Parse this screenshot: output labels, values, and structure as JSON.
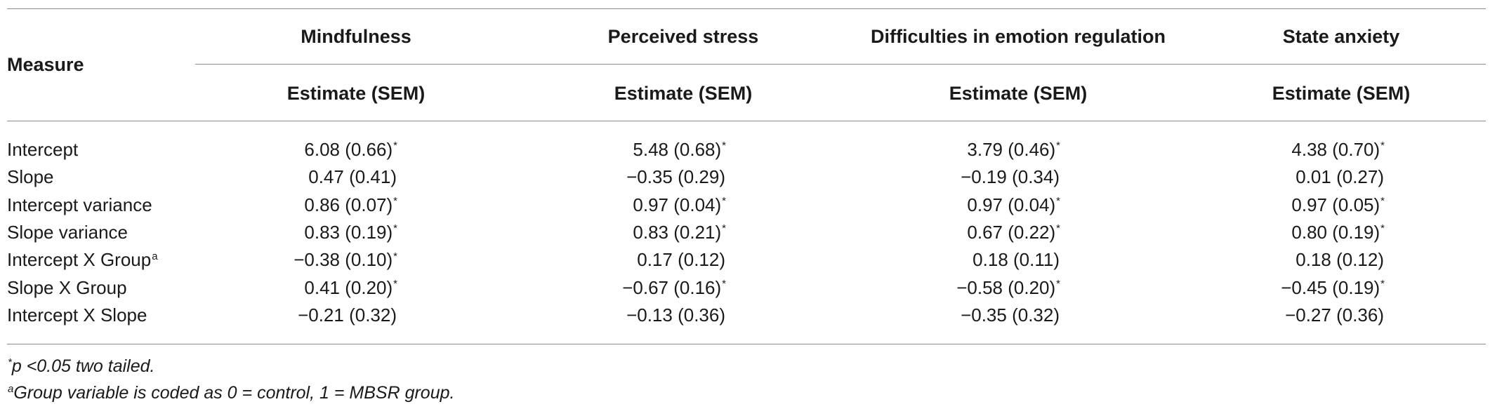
{
  "table": {
    "row_header": "Measure",
    "column_groups": [
      {
        "name": "Mindfulness",
        "sub": "Estimate (SEM)"
      },
      {
        "name": "Perceived stress",
        "sub": "Estimate (SEM)"
      },
      {
        "name": "Difficulties in emotion regulation",
        "sub": "Estimate (SEM)"
      },
      {
        "name": "State anxiety",
        "sub": "Estimate (SEM)"
      }
    ],
    "rows": [
      {
        "label": "Intercept",
        "label_sup": "",
        "cells": [
          {
            "value": "6.08 (0.66)",
            "sig": "*"
          },
          {
            "value": "5.48 (0.68)",
            "sig": "*"
          },
          {
            "value": "3.79 (0.46)",
            "sig": "*"
          },
          {
            "value": "4.38 (0.70)",
            "sig": "*"
          }
        ]
      },
      {
        "label": "Slope",
        "label_sup": "",
        "cells": [
          {
            "value": "0.47 (0.41)",
            "sig": ""
          },
          {
            "value": "−0.35 (0.29)",
            "sig": ""
          },
          {
            "value": "−0.19 (0.34)",
            "sig": ""
          },
          {
            "value": "0.01 (0.27)",
            "sig": ""
          }
        ]
      },
      {
        "label": "Intercept variance",
        "label_sup": "",
        "cells": [
          {
            "value": "0.86 (0.07)",
            "sig": "*"
          },
          {
            "value": "0.97 (0.04)",
            "sig": "*"
          },
          {
            "value": "0.97 (0.04)",
            "sig": "*"
          },
          {
            "value": "0.97 (0.05)",
            "sig": "*"
          }
        ]
      },
      {
        "label": "Slope variance",
        "label_sup": "",
        "cells": [
          {
            "value": "0.83 (0.19)",
            "sig": "*"
          },
          {
            "value": "0.83 (0.21)",
            "sig": "*"
          },
          {
            "value": "0.67 (0.22)",
            "sig": "*"
          },
          {
            "value": "0.80 (0.19)",
            "sig": "*"
          }
        ]
      },
      {
        "label": "Intercept X Group",
        "label_sup": "a",
        "cells": [
          {
            "value": "−0.38 (0.10)",
            "sig": "*"
          },
          {
            "value": "0.17 (0.12)",
            "sig": ""
          },
          {
            "value": "0.18 (0.11)",
            "sig": ""
          },
          {
            "value": "0.18 (0.12)",
            "sig": ""
          }
        ]
      },
      {
        "label": "Slope X Group",
        "label_sup": "",
        "cells": [
          {
            "value": "0.41 (0.20)",
            "sig": "*"
          },
          {
            "value": "−0.67 (0.16)",
            "sig": "*"
          },
          {
            "value": "−0.58 (0.20)",
            "sig": "*"
          },
          {
            "value": "−0.45 (0.19)",
            "sig": "*"
          }
        ]
      },
      {
        "label": "Intercept X Slope",
        "label_sup": "",
        "cells": [
          {
            "value": "−0.21 (0.32)",
            "sig": ""
          },
          {
            "value": "−0.13 (0.36)",
            "sig": ""
          },
          {
            "value": "−0.35 (0.32)",
            "sig": ""
          },
          {
            "value": "−0.27 (0.36)",
            "sig": ""
          }
        ]
      }
    ]
  },
  "footnotes": {
    "n1_mark": "*",
    "n1_text": "p <0.05 two tailed.",
    "n2_mark": "a",
    "n2_text": "Group variable is coded as 0 = control, 1 = MBSR group."
  }
}
